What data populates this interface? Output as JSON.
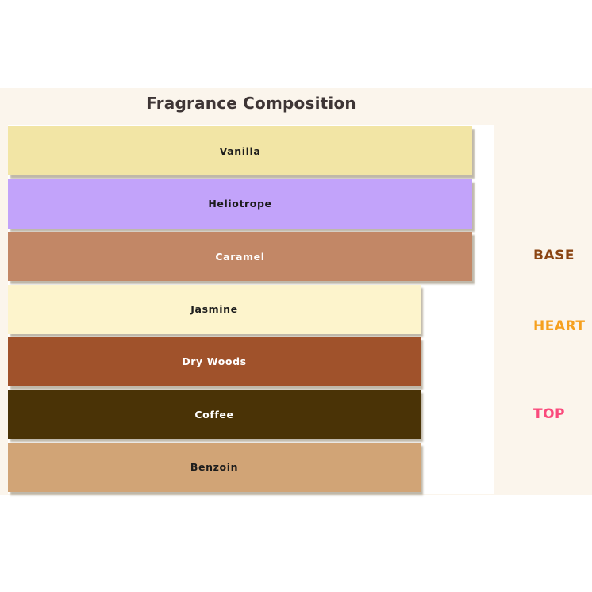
{
  "chart_data": {
    "type": "bar",
    "orientation": "horizontal",
    "title": "Fragrance Composition",
    "categories": [
      "Vanilla",
      "Heliotrope",
      "Caramel",
      "Jasmine",
      "Dry Woods",
      "Coffee",
      "Benzoin"
    ],
    "values": [
      9,
      9,
      9,
      8,
      8,
      8,
      8
    ],
    "xlim": [
      0,
      9.43
    ],
    "grid": false,
    "axis_ticks": "none",
    "legend_position": "none",
    "bar_name_labels_inside": true,
    "bar_colors": [
      "#F2E5A5",
      "#C2A3FA",
      "#C28766",
      "#FDF4CC",
      "#A0522B",
      "#4A3306",
      "#D1A476"
    ],
    "bar_text_colors": [
      "#1C1C1C",
      "#1C1C1C",
      "#FFFFFF",
      "#1C1C1C",
      "#FFFFFF",
      "#FFFFFF",
      "#1C1C1C"
    ],
    "group_labels": [
      {
        "label": "BASE",
        "color": "#8B4513"
      },
      {
        "label": "HEART",
        "color": "#F6A01E"
      },
      {
        "label": "TOP",
        "color": "#FA4A7C"
      }
    ]
  },
  "styles": {
    "figure_bg": "#FBF5EC",
    "plot_bg": "#FFFFFF",
    "title_color": "#3E3535",
    "shadow_color": "rgba(112,98,66,0.45)"
  }
}
